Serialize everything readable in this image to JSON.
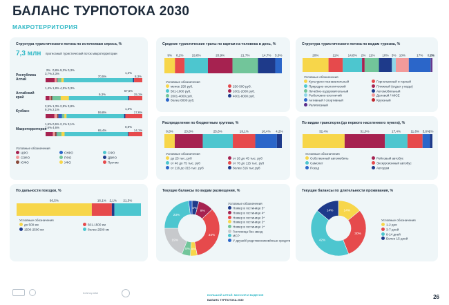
{
  "header": {
    "title": "БАЛАНС ТУРПОТОКА 2030",
    "subtitle": "МАКРОТЕРРИТОРИЯ"
  },
  "colors": {
    "yellow": "#f7d64a",
    "red": "#e64a4c",
    "teal": "#4dc6cf",
    "green": "#72c59a",
    "navy": "#1e3a8a",
    "maroon": "#a62250",
    "blue": "#2b66c9",
    "pink": "#f29a9a",
    "lightblue": "#8fd6e8",
    "purple": "#5a2c8a",
    "grey": "#c7c9cc",
    "darkred": "#c0262d",
    "dark": "#22303f",
    "brown": "#7b4a3a"
  },
  "panel1": {
    "title": "Структура туристического потока по источникам спроса, %",
    "total_value": "7,3 млн",
    "total_label": "прогнозный туристический поток макротерритории",
    "legend_title": "Условные обозначения",
    "legend": [
      {
        "label": "ЦФО",
        "color": "#a62250"
      },
      {
        "label": "СКФО",
        "color": "#2b66c9"
      },
      {
        "label": "СФО",
        "color": "#4dc6cf"
      },
      {
        "label": "СЗФО",
        "color": "#f29a9a"
      },
      {
        "label": "ПФО",
        "color": "#72c59a"
      },
      {
        "label": "ДВФО",
        "color": "#1e3a8a"
      },
      {
        "label": "ЮФО",
        "color": "#8a4a3a"
      },
      {
        "label": "УФО",
        "color": "#f7d64a"
      },
      {
        "label": "Прочие",
        "color": "#e64a4c"
      }
    ]
  },
  "chart_data": [
    {
      "type": "bar",
      "id": "sources",
      "title": "Структура туристического потока по источникам спроса, %",
      "categories": [
        "Республика Алтай",
        "Алтайский край",
        "Кузбасс",
        "Макротерритория"
      ],
      "series": [
        {
          "name": "ЦФО",
          "values": [
            9.3,
            4.5,
            9.2,
            7.6
          ]
        },
        {
          "name": "СЗФО",
          "values": [
            2.0,
            1.4,
            2.8,
            2.1
          ]
        },
        {
          "name": "ЮФО",
          "values": [
            0.8,
            1.8,
            1.3,
            1.6
          ]
        },
        {
          "name": "СКФО",
          "values": [
            0.3,
            0.3,
            3.8,
            0.6
          ]
        },
        {
          "name": "ПФО",
          "values": [
            3.7,
            9.3,
            2.5,
            4.6
          ]
        },
        {
          "name": "УФО",
          "values": [
            2.3,
            9.3,
            2.1,
            3.1
          ]
        },
        {
          "name": "СФО",
          "values": [
            70.5,
            67.6,
            59.8,
            65.4
          ]
        },
        {
          "name": "ДВФО",
          "values": [
            1.2,
            1.2,
            1.3,
            0.8
          ]
        },
        {
          "name": "Прочие",
          "values": [
            8.3,
            15.1,
            17.6,
            14.1
          ]
        }
      ],
      "annotations": {
        "Республика Алтай": [
          "2%",
          "0,8%",
          "9,3%",
          "0,3%",
          "3,7%",
          "2,3%",
          "70,5%",
          "1,2%",
          "8,3%"
        ],
        "Алтайский край": [
          "1,4%",
          "1,8%",
          "4,5%",
          "0,3%",
          "9,3%",
          "67,6%",
          "15,1%"
        ],
        "Кузбасс": [
          "2,5%",
          "1,3%",
          "2,8%",
          "3,8%",
          "9,2%",
          "2,1%",
          "59,8%",
          "1,3%",
          "17,6%"
        ],
        "Макротерритория": [
          "1,6%",
          "0,6%",
          "2,1%",
          "3,1%",
          "7,6%",
          "4,6%",
          "65,4%",
          "0,8%",
          "14,1%"
        ]
      }
    },
    {
      "type": "bar",
      "id": "spend",
      "title": "Средние туристические траты по картам на человека в день, %",
      "series": [
        {
          "name": "менее 250 руб.",
          "value": 9,
          "label": "9%",
          "color": "#f7d64a"
        },
        {
          "name": "250-500 руб.",
          "value": 8.2,
          "label": "8,2%",
          "color": "#e64a4c"
        },
        {
          "name": "501-1000 руб.",
          "value": 19.8,
          "label": "19,8%",
          "color": "#4dc6cf"
        },
        {
          "name": "1001-2000 руб.",
          "value": 20.9,
          "label": "20,9%",
          "color": "#a62250"
        },
        {
          "name": "2001-4000 руб.",
          "value": 21.7,
          "label": "21,7%",
          "color": "#72c59a"
        },
        {
          "name": "4001-8000 руб.",
          "value": 14.7,
          "label": "14,7%",
          "color": "#1e3a8a"
        },
        {
          "name": "более 8000 руб.",
          "value": 5.6,
          "label": "5,6%",
          "color": "#2b66c9"
        }
      ],
      "legend_title": "Условные обозначения"
    },
    {
      "type": "bar",
      "id": "tourism_types",
      "title": "Структура туристического потока по видам туризма, %",
      "series": [
        {
          "name": "Культурно-познавательный",
          "value": 20,
          "label": "20%",
          "color": "#f7d64a"
        },
        {
          "name": "Горнолыжный и горный",
          "value": 11,
          "label": "11%",
          "color": "#e64a4c"
        },
        {
          "name": "Природно-экологический",
          "value": 14.8,
          "label": "14,8%",
          "color": "#4dc6cf"
        },
        {
          "name": "Пляжный (отдых у воды)",
          "value": 2,
          "label": "2%",
          "color": "#a62250"
        },
        {
          "name": "Лечебно-оздоровительный",
          "value": 11,
          "label": "11%",
          "color": "#72c59a"
        },
        {
          "name": "Автомобильный",
          "value": 10,
          "label": "10%",
          "color": "#1e3a8a"
        },
        {
          "name": "Рыболовно-охотничий",
          "value": 3,
          "label": "3%",
          "color": "#8fd6e8"
        },
        {
          "name": "Деловой / MICE",
          "value": 10,
          "label": "10%",
          "color": "#f29a9a"
        },
        {
          "name": "Активный / спортивный",
          "value": 17,
          "label": "17%",
          "color": "#2b66c9"
        },
        {
          "name": "Круизный",
          "value": 0.2,
          "label": "0,2%",
          "color": "#c0262d"
        },
        {
          "name": "Религиозный",
          "value": 1,
          "label": "1%",
          "color": "#5a2c8a"
        }
      ],
      "legend_title": "Условные обозначения"
    },
    {
      "type": "bar",
      "id": "budget",
      "title": "Распределение по бюджетным группам, %",
      "series": [
        {
          "name": "до 25 тыс. руб",
          "value": 8.8,
          "label": "8,8%",
          "color": "#f7d64a"
        },
        {
          "name": "от 26 до 45 тыс. руб",
          "value": 23.8,
          "label": "23,8%",
          "color": "#a62250"
        },
        {
          "name": "от 46 до 75 тыс. руб",
          "value": 25.6,
          "label": "25,6%",
          "color": "#4dc6cf"
        },
        {
          "name": "от 76 до 115 тыс. руб",
          "value": 19.1,
          "label": "19,1%",
          "color": "#e64a4c"
        },
        {
          "name": "от 116 до 315 тыс. руб",
          "value": 18.4,
          "label": "18,4%",
          "color": "#2b66c9"
        },
        {
          "name": "более 316 тыс.руб",
          "value": 4.2,
          "label": "4,2%",
          "color": "#1e3a8a"
        }
      ],
      "legend_title": "Условные обозначения"
    },
    {
      "type": "bar",
      "id": "transport",
      "title": "По видам транспорта (до первого населенного пункта), %",
      "series": [
        {
          "name": "Собственный автомобиль",
          "value": 32.4,
          "label": "32,4%",
          "color": "#f7d64a"
        },
        {
          "name": "Рейсовый автобус",
          "value": 31.0,
          "label": "31,0%",
          "color": "#a62250"
        },
        {
          "name": "Самолет",
          "value": 17.4,
          "label": "17,4%",
          "color": "#4dc6cf"
        },
        {
          "name": "Экскурсионный автобус",
          "value": 11.6,
          "label": "11,6%",
          "color": "#e64a4c"
        },
        {
          "name": "Поезд",
          "value": 5.6,
          "label": "5,6%",
          "color": "#2b66c9"
        },
        {
          "name": "Автодом",
          "value": 2,
          "label": "2%",
          "color": "#1e3a8a"
        }
      ],
      "legend_title": "Условные обозначения"
    },
    {
      "type": "bar",
      "id": "distance",
      "title": "По дальности поездки, %",
      "series": [
        {
          "name": "до 500 км",
          "value": 60.5,
          "label": "60,5%",
          "color": "#f7d64a"
        },
        {
          "name": "501-1500 км",
          "value": 16.1,
          "label": "16,1%",
          "color": "#e64a4c"
        },
        {
          "name": "1500-2500 км",
          "value": 2.1,
          "label": "2,1%",
          "color": "#1e3a8a"
        },
        {
          "name": "более 2500 км",
          "value": 21.3,
          "label": "21,3%",
          "color": "#4dc6cf"
        }
      ],
      "legend_title": "Условные обозначения"
    },
    {
      "type": "pie",
      "id": "accommodation",
      "title": "Текущие балансы по видам размещения, %",
      "series": [
        {
          "name": "Номер в гостинице 5*",
          "value": 4,
          "label": "4%",
          "color": "#1e3a8a"
        },
        {
          "name": "Номер в гостинице 4*",
          "value": 9,
          "label": "9%",
          "color": "#a62250"
        },
        {
          "name": "Номер в гостинице 3*",
          "value": 34,
          "label": "34%",
          "color": "#e64a4c"
        },
        {
          "name": "Номер в гостинице 2*",
          "value": 4,
          "label": "4%",
          "color": "#f7d64a"
        },
        {
          "name": "Номер в гостинице 1*",
          "value": 5,
          "label": "5%",
          "color": "#72c59a"
        },
        {
          "name": "Гостиница без звезд",
          "value": 19,
          "label": "19%",
          "color": "#c7c9cc"
        },
        {
          "name": "ИСР",
          "value": 23,
          "label": "23%",
          "color": "#4dc6cf"
        },
        {
          "name": "У друзей/ родственников/иные средства размещения",
          "value": 2,
          "label": "",
          "color": "#2b66c9"
        }
      ],
      "legend_title": "Условные обозначения"
    },
    {
      "type": "pie",
      "id": "duration",
      "title": "Текущие балансы по длительности проживания, %",
      "series": [
        {
          "name": "1-2 дня",
          "value": 14,
          "label": "14%",
          "color": "#f7d64a"
        },
        {
          "name": "3-7 дней",
          "value": 30,
          "label": "30%",
          "color": "#e64a4c"
        },
        {
          "name": "8-14 дней",
          "value": 42,
          "label": "42%",
          "color": "#4dc6cf"
        },
        {
          "name": "Более 15 дней",
          "value": 14,
          "label": "14%",
          "color": "#1e3a8a"
        }
      ],
      "legend_title": "Условные обозначения"
    }
  ],
  "footer": {
    "line1": "БОЛЬШОЙ АЛТАЙ: МИССИЯ И ВИДЕНИЕ",
    "line2": "БАЛАНС ТУРПОТОКА 2030",
    "page": "26",
    "logo_text": "bolshoy.altai"
  }
}
